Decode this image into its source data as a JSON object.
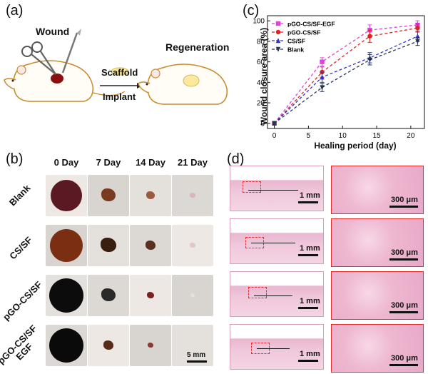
{
  "panels": {
    "a": "(a)",
    "b": "(b)",
    "c": "(c)",
    "d": "(d)"
  },
  "schematic": {
    "wound_label": "Wound",
    "scaffold_label": "Scaffold",
    "implant_label": "Implant",
    "regeneration_label": "Regeneration"
  },
  "photos": {
    "day_headers": [
      "0 Day",
      "7 Day",
      "14 Day",
      "21 Day"
    ],
    "row_labels": [
      "Blank",
      "CS/SF",
      "pGO-CS/SF",
      "pGO-CS/SF EGF"
    ],
    "row_label_lines": {
      "last_line1": "pGO-CS/SF",
      "last_line2": "EGF"
    },
    "scale_bar": "5 mm"
  },
  "histology": {
    "scale_large": "1 mm",
    "scale_zoom": "300 μm"
  },
  "chart_data": {
    "type": "line",
    "xlabel": "Healing period (day)",
    "ylabel": "Wound closure area (%)",
    "xlim": [
      -1,
      22
    ],
    "ylim": [
      -5,
      105
    ],
    "xticks": [
      0,
      5,
      10,
      15,
      20
    ],
    "yticks": [
      0,
      20,
      40,
      60,
      80,
      100
    ],
    "x": [
      0,
      7,
      14,
      21
    ],
    "series": [
      {
        "name": "pGO-CS/SF-EGF",
        "color": "#e040e0",
        "marker": "square",
        "values": [
          0,
          60,
          91,
          96
        ],
        "errors": [
          1,
          4,
          5,
          4
        ]
      },
      {
        "name": "pGO-CS/SF",
        "color": "#e02020",
        "marker": "circle",
        "values": [
          0,
          50,
          85,
          93
        ],
        "errors": [
          1,
          5,
          6,
          4
        ]
      },
      {
        "name": "CS/SF",
        "color": "#3030d0",
        "marker": "triangle-up",
        "values": [
          0,
          45,
          64,
          85
        ],
        "errors": [
          1,
          5,
          5,
          5
        ]
      },
      {
        "name": "Blank",
        "color": "#223355",
        "marker": "triangle-down",
        "values": [
          0,
          35,
          62,
          80
        ],
        "errors": [
          1,
          4,
          5,
          4
        ]
      }
    ]
  }
}
